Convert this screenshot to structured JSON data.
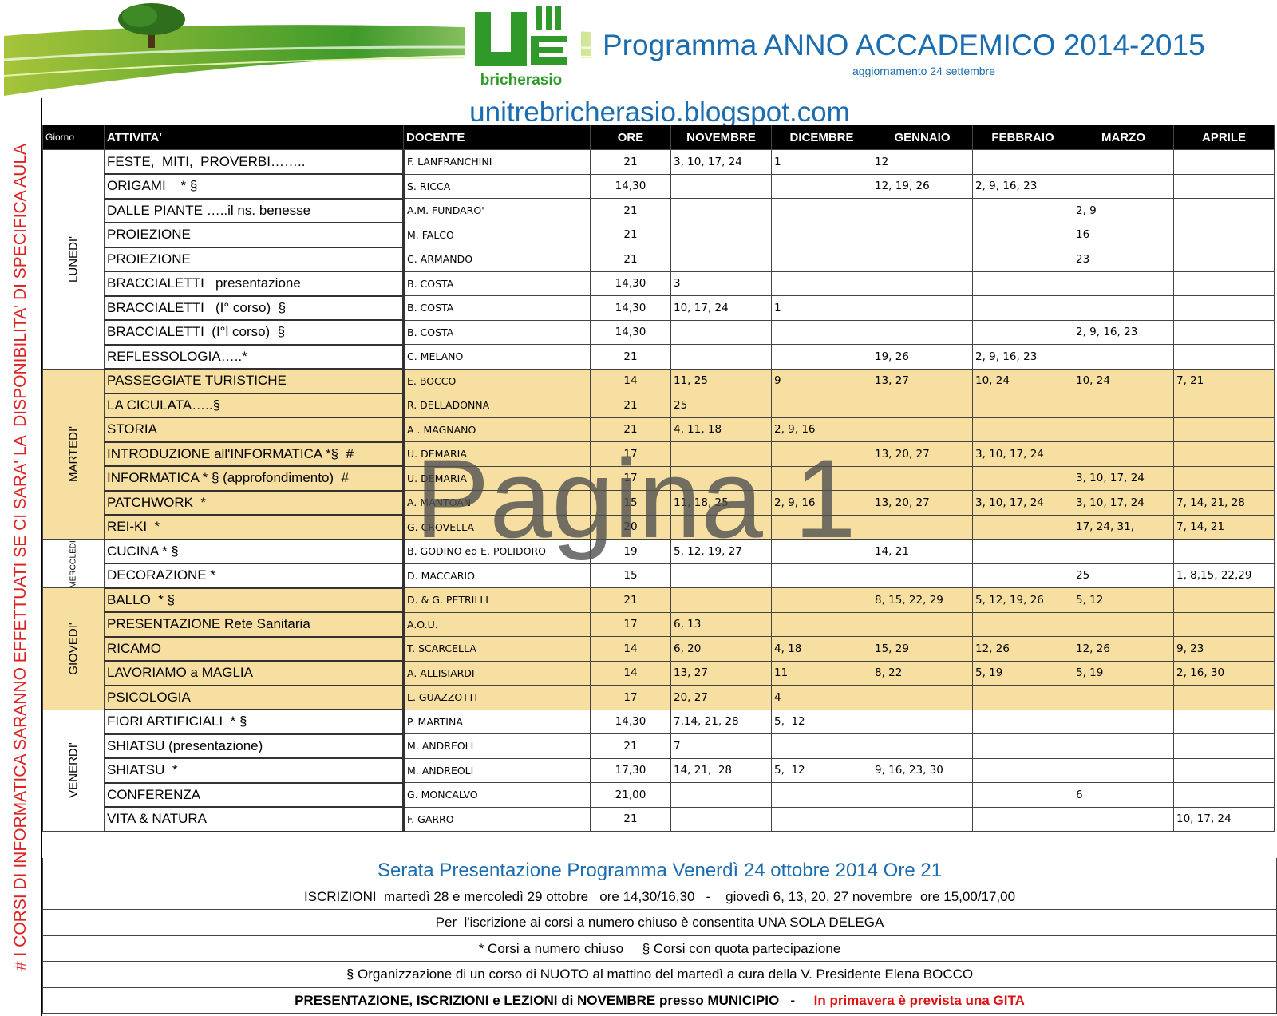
{
  "header": {
    "title": "Programma ANNO ACCADEMICO 2014-2015",
    "subtitle": "aggiornamento 24 settembre",
    "logo_text": "bricherasio",
    "url": "unitrebricherasio.blogspot.com"
  },
  "watermark": "Pagina 1",
  "side_note": "# I CORSI DI INFORMATICA SARANNO EFFETTUATI SE CI SARA' LA  DISPONIBILITA' DI SPECIFICA AULA",
  "table": {
    "columns": [
      "Giorno",
      "ATTIVITA'",
      "DOCENTE",
      "ORE",
      "NOVEMBRE",
      "DICEMBRE",
      "GENNAIO",
      "FEBBRAIO",
      "MARZO",
      "APRILE"
    ],
    "groups": [
      {
        "day": "LUNEDI'",
        "rows": [
          [
            "FESTE,  MITI,  PROVERBI……..",
            "F. LANFRANCHINI",
            "21",
            "3, 10, 17, 24",
            "1",
            "12",
            null,
            null,
            null
          ],
          [
            "ORIGAMI    * §",
            "S. RICCA",
            "14,30",
            null,
            null,
            "12, 19, 26",
            "2, 9, 16, 23",
            null,
            null
          ],
          [
            "DALLE PIANTE …..il ns. benesse",
            "A.M. FUNDARO'",
            "21",
            null,
            null,
            null,
            null,
            "2, 9",
            null
          ],
          [
            "PROIEZIONE",
            "M. FALCO",
            "21",
            null,
            null,
            null,
            null,
            "16",
            null
          ],
          [
            "PROIEZIONE",
            "C. ARMANDO",
            "21",
            null,
            null,
            null,
            null,
            "23",
            null
          ],
          [
            "BRACCIALETTI   presentazione",
            "B. COSTA",
            "14,30",
            "3",
            null,
            null,
            null,
            null,
            null
          ],
          [
            "BRACCIALETTI   (I° corso)  §",
            "B. COSTA",
            "14,30",
            "10, 17, 24",
            "1",
            null,
            null,
            null,
            null
          ],
          [
            "BRACCIALETTI  (I°l corso)  §",
            "B. COSTA",
            "14,30",
            null,
            null,
            null,
            null,
            "2, 9, 16, 23",
            null
          ],
          [
            "REFLESSOLOGIA…..*",
            "C. MELANO",
            "21",
            null,
            null,
            "19, 26",
            "2, 9, 16, 23",
            null,
            null
          ]
        ]
      },
      {
        "day": "MARTEDI'",
        "rows": [
          [
            "PASSEGGIATE TURISTICHE",
            "E. BOCCO",
            "14",
            "11, 25",
            "9",
            "13, 27",
            "10, 24",
            "10, 24",
            "7, 21"
          ],
          [
            "LA CICULATA…..§",
            "R. DELLADONNA",
            "21",
            "25",
            null,
            null,
            null,
            null,
            null
          ],
          [
            "STORIA",
            "A . MAGNANO",
            "21",
            "4, 11, 18",
            "2, 9, 16",
            null,
            null,
            null,
            null
          ],
          [
            "INTRODUZIONE all'INFORMATICA *§  #",
            "U. DEMARIA",
            "17",
            null,
            null,
            "13, 20, 27",
            "3, 10, 17, 24",
            null,
            null
          ],
          [
            "INFORMATICA * § (approfondimento)  #",
            "U. DEMARIA",
            "17",
            null,
            null,
            null,
            null,
            "3, 10, 17, 24",
            null
          ],
          [
            "PATCHWORK  *",
            "A. MANTOAN",
            "15",
            "11, 18, 25",
            "2, 9, 16",
            "13, 20, 27",
            "3, 10, 17, 24",
            "3, 10, 17, 24",
            "7, 14, 21, 28"
          ],
          [
            "REI-KI  *",
            "G. CROVELLA",
            "20",
            null,
            null,
            null,
            null,
            "17, 24, 31,",
            "7, 14, 21"
          ]
        ]
      },
      {
        "day": "MERCOLEDI'",
        "rows": [
          [
            "CUCINA * §",
            "B. GODINO ed E. POLIDORO",
            "19",
            "5, 12, 19, 27",
            null,
            "14, 21",
            null,
            null,
            null
          ],
          [
            "DECORAZIONE *",
            "D. MACCARIO",
            "15",
            null,
            null,
            null,
            null,
            "25",
            "1, 8,15, 22,29"
          ]
        ]
      },
      {
        "day": "GIOVEDI'",
        "rows": [
          [
            "BALLO  * §",
            "D. & G. PETRILLI",
            "21",
            null,
            null,
            "8, 15, 22, 29",
            "5, 12, 19, 26",
            "5, 12",
            null
          ],
          [
            "PRESENTAZIONE Rete Sanitaria",
            "A.O.U.",
            "17",
            "6, 13",
            null,
            null,
            null,
            null,
            null
          ],
          [
            "RICAMO",
            "T. SCARCELLA",
            "14",
            "6, 20",
            "4, 18",
            "15, 29",
            "12, 26",
            "12, 26",
            "9, 23"
          ],
          [
            "LAVORIAMO a MAGLIA",
            "A. ALLISIARDI",
            "14",
            "13, 27",
            "11",
            "8, 22",
            "5, 19",
            "5, 19",
            "2, 16, 30"
          ],
          [
            "PSICOLOGIA",
            "L. GUAZZOTTI",
            "17",
            "20, 27",
            "4",
            null,
            null,
            null,
            null
          ]
        ]
      },
      {
        "day": "VENERDI'",
        "rows": [
          [
            "FIORI ARTIFICIALI  * §",
            "P. MARTINA",
            "14,30",
            "7,14, 21, 28",
            "5,  12",
            null,
            null,
            null,
            null
          ],
          [
            "SHIATSU (presentazione)",
            "M. ANDREOLI",
            "21",
            "7",
            null,
            null,
            null,
            null,
            null
          ],
          [
            "SHIATSU  *",
            "M. ANDREOLI",
            "17,30",
            "14, 21,  28",
            "5,  12",
            "9, 16, 23, 30",
            null,
            null,
            null
          ],
          [
            "CONFERENZA",
            "G. MONCALVO",
            "21,00",
            null,
            null,
            null,
            null,
            "6",
            null
          ],
          [
            "VITA & NATURA",
            "F. GARRO",
            "21",
            null,
            null,
            null,
            null,
            null,
            "10, 17, 24"
          ]
        ]
      }
    ]
  },
  "footer": {
    "lines": [
      "Serata Presentazione Programma Venerdì 24 ottobre 2014 Ore 21",
      "ISCRIZIONI  martedì 28 e mercoledì 29 ottobre   ore 14,30/16,30   -    giovedì 6, 13, 20, 27 novembre  ore 15,00/17,00",
      "Per  l'iscrizione ai corsi a numero chiuso è consentita UNA SOLA DELEGA",
      "* Corsi a numero chiuso     § Corsi con quota partecipazione",
      "§ Organizzazione di un corso di NUOTO al mattino del martedì a cura della V. Presidente Elena BOCCO"
    ],
    "last": {
      "text": "PRESENTAZIONE, ISCRIZIONI e LEZIONI di NOVEMBRE presso MUNICIPIO   -",
      "note": "In primavera è prevista una GITA"
    }
  }
}
